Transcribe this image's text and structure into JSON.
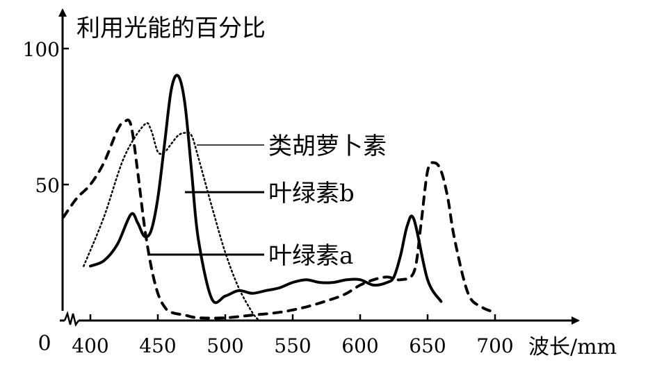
{
  "chart_data": {
    "type": "line",
    "ylabel": "利用光能的百分比",
    "xlabel": "波长/mm",
    "origin_label": "0",
    "xlim": [
      400,
      700
    ],
    "ylim": [
      0,
      100
    ],
    "x_ticks": [
      400,
      450,
      500,
      550,
      600,
      650,
      700
    ],
    "y_ticks": [
      50,
      100
    ],
    "grid": false,
    "series": [
      {
        "name": "类胡萝卜素",
        "style": "dotted",
        "x": [
          395,
          410,
          425,
          440,
          445,
          450,
          455,
          460,
          465,
          470,
          475,
          480,
          490,
          500,
          510,
          520,
          525
        ],
        "y": [
          20,
          38,
          60,
          72,
          70,
          62,
          62,
          65,
          68,
          69,
          68,
          60,
          42,
          25,
          12,
          3,
          0
        ]
      },
      {
        "name": "叶绿素b",
        "style": "solid",
        "x": [
          400,
          410,
          420,
          430,
          435,
          440,
          445,
          450,
          455,
          460,
          465,
          470,
          475,
          480,
          490,
          500,
          510,
          520,
          530,
          540,
          550,
          560,
          570,
          580,
          590,
          600,
          610,
          620,
          625,
          630,
          635,
          640,
          650,
          660
        ],
        "y": [
          20,
          22,
          28,
          39,
          36,
          31,
          33,
          45,
          65,
          85,
          90,
          80,
          55,
          30,
          8,
          9,
          11,
          10,
          11,
          12,
          14,
          15,
          14,
          14,
          15,
          15,
          13,
          14,
          16,
          24,
          35,
          37,
          15,
          7
        ]
      },
      {
        "name": "叶绿素a",
        "style": "dashed",
        "x": [
          380,
          390,
          400,
          410,
          420,
          425,
          430,
          435,
          440,
          445,
          450,
          455,
          460,
          470,
          480,
          500,
          520,
          540,
          560,
          580,
          590,
          600,
          610,
          620,
          630,
          640,
          645,
          650,
          655,
          660,
          665,
          670,
          680,
          690,
          700
        ],
        "y": [
          38,
          45,
          50,
          58,
          70,
          73,
          72,
          55,
          35,
          20,
          10,
          5,
          3,
          2,
          1,
          1,
          2,
          3,
          5,
          8,
          10,
          13,
          15,
          16,
          15,
          18,
          35,
          55,
          58,
          55,
          45,
          30,
          10,
          5,
          3
        ]
      }
    ]
  }
}
